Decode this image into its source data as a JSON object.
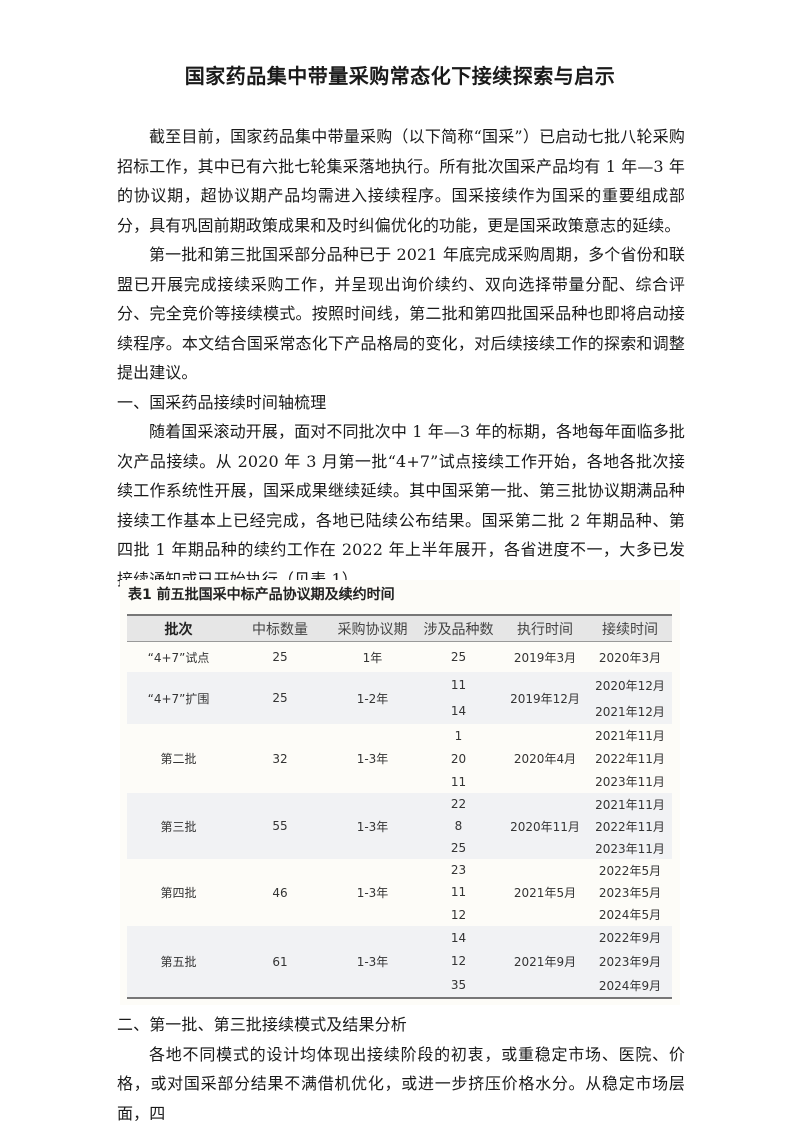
{
  "title": "国家药品集中带量采购常态化下接续探索与启示",
  "paragraphs": [
    "截至目前，国家药品集中带量采购（以下简称“国采”）已启动七批八轮采购招标工作，其中已有六批七轮集采落地执行。所有批次国采产品均有 1 年—3 年的协议期，超协议期产品均需进入接续程序。国采接续作为国采的重要组成部分，具有巩固前期政策成果和及时纠偏优化的功能，更是国采政策意志的延续。",
    "第一批和第三批国采部分品种已于 2021 年底完成采购周期，多个省份和联盟已开展完成接续采购工作，并呈现出询价续约、双向选择带量分配、综合评分、完全竞价等接续模式。按照时间线，第二批和第四批国采品种也即将启动接续程序。本文结合国采常态化下产品格局的变化，对后续接续工作的探索和调整提出建议。"
  ],
  "section1_heading": "一、国采药品接续时间轴梳理",
  "section1_paragraph": "随着国采滚动开展，面对不同批次中 1 年—3 年的标期，各地每年面临多批次产品接续。从 2020 年 3 月第一批“4+7”试点接续工作开始，各地各批次接续工作系统性开展，国采成果继续延续。其中国采第一批、第三批协议期满品种接续工作基本上已经完成，各地已陆续公布结果。国采第二批 2 年期品种、第四批 1 年期品种的续约工作在 2022 年上半年展开，各省进度不一，大多已发接续通知或已开始执行（见表 1）。",
  "table": {
    "caption": "表1  前五批国采中标产品协议期及续约时间",
    "headers": [
      "批次",
      "中标数量",
      "采购协议期",
      "涉及品种数",
      "执行时间",
      "接续时间"
    ],
    "rows": [
      {
        "batch": "“4+7”试点",
        "count": "25",
        "period": "1年",
        "varieties": [
          "25"
        ],
        "exec": "2019年3月",
        "renew": [
          "2020年3月"
        ]
      },
      {
        "batch": "“4+7”扩围",
        "count": "25",
        "period": "1-2年",
        "varieties": [
          "11",
          "14"
        ],
        "exec": "2019年12月",
        "renew": [
          "2020年12月",
          "2021年12月"
        ]
      },
      {
        "batch": "第二批",
        "count": "32",
        "period": "1-3年",
        "varieties": [
          "1",
          "20",
          "11"
        ],
        "exec": "2020年4月",
        "renew": [
          "2021年11月",
          "2022年11月",
          "2023年11月"
        ]
      },
      {
        "batch": "第三批",
        "count": "55",
        "period": "1-3年",
        "varieties": [
          "22",
          "8",
          "25"
        ],
        "exec": "2020年11月",
        "renew": [
          "2021年11月",
          "2022年11月",
          "2023年11月"
        ]
      },
      {
        "batch": "第四批",
        "count": "46",
        "period": "1-3年",
        "varieties": [
          "23",
          "11",
          "12"
        ],
        "exec": "2021年5月",
        "renew": [
          "2022年5月",
          "2023年5月",
          "2024年5月"
        ]
      },
      {
        "batch": "第五批",
        "count": "61",
        "period": "1-3年",
        "varieties": [
          "14",
          "12",
          "35"
        ],
        "exec": "2021年9月",
        "renew": [
          "2022年9月",
          "2023年9月",
          "2024年9月"
        ]
      }
    ]
  },
  "section2_heading": "二、第一批、第三批接续模式及结果分析",
  "section2_paragraph": "各地不同模式的设计均体现出接续阶段的初衷，或重稳定市场、医院、价格，或对国采部分结果不满借机优化，或进一步挤压价格水分。从稳定市场层面，四"
}
